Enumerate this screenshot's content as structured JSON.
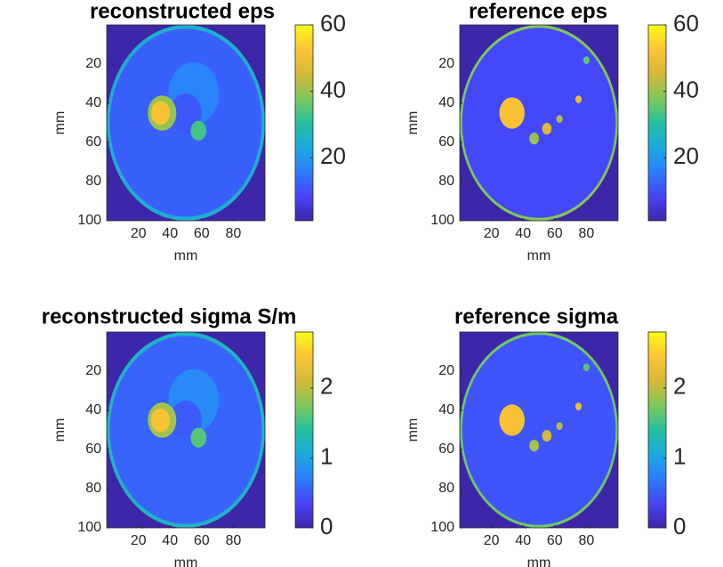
{
  "chart_data": [
    {
      "type": "heatmap",
      "title": "reconstructed eps",
      "xlabel": "mm",
      "ylabel": "mm",
      "xlim": [
        0,
        100
      ],
      "ylim": [
        0,
        100
      ],
      "xticks": [
        20,
        40,
        60,
        80
      ],
      "yticks": [
        20,
        40,
        60,
        80,
        100
      ],
      "clim": [
        1,
        60
      ],
      "cticks": [
        20,
        40,
        60
      ],
      "colormap": [
        "#3e26a8",
        "#4743f8",
        "#2c7dfe",
        "#1ca9df",
        "#25c09f",
        "#7dc85b",
        "#d6b938",
        "#fcc335",
        "#f9fb15"
      ],
      "regions": [
        {
          "x": 50,
          "y": 50,
          "r": 50,
          "value": 25
        },
        {
          "x": 50,
          "y": 50,
          "r": 48,
          "value": 12
        },
        {
          "x": 55,
          "y": 35,
          "r": 16,
          "value": 17
        },
        {
          "x": 50,
          "y": 45,
          "r": 10,
          "value": 11
        },
        {
          "x": 35,
          "y": 45,
          "r": 9,
          "value": 40
        },
        {
          "x": 34,
          "y": 45,
          "r": 6,
          "value": 52
        },
        {
          "x": 58,
          "y": 54,
          "r": 5,
          "value": 33
        }
      ]
    },
    {
      "type": "heatmap",
      "title": "reference eps",
      "xlabel": "mm",
      "ylabel": "mm",
      "xlim": [
        0,
        100
      ],
      "ylim": [
        0,
        100
      ],
      "xticks": [
        20,
        40,
        60,
        80
      ],
      "yticks": [
        20,
        40,
        60,
        80,
        100
      ],
      "clim": [
        1,
        60
      ],
      "cticks": [
        20,
        40,
        60
      ],
      "colormap": [
        "#3e26a8",
        "#4743f8",
        "#2c7dfe",
        "#1ca9df",
        "#25c09f",
        "#7dc85b",
        "#d6b938",
        "#fcc335",
        "#f9fb15"
      ],
      "regions": [
        {
          "x": 50,
          "y": 50,
          "r": 50,
          "value": 38
        },
        {
          "x": 50,
          "y": 50,
          "r": 48.5,
          "value": 9
        },
        {
          "x": 33,
          "y": 45,
          "r": 8,
          "value": 52
        },
        {
          "x": 55,
          "y": 53,
          "r": 3,
          "value": 46
        },
        {
          "x": 47,
          "y": 58,
          "r": 3,
          "value": 40
        },
        {
          "x": 75,
          "y": 38,
          "r": 2,
          "value": 50
        },
        {
          "x": 63,
          "y": 48,
          "r": 2,
          "value": 42
        },
        {
          "x": 80,
          "y": 18,
          "r": 2,
          "value": 35
        }
      ]
    },
    {
      "type": "heatmap",
      "title": "reconstructed sigma S/m",
      "xlabel": "mm",
      "ylabel": "mm",
      "xlim": [
        0,
        100
      ],
      "ylim": [
        0,
        100
      ],
      "xticks": [
        20,
        40,
        60,
        80
      ],
      "yticks": [
        20,
        40,
        60,
        80,
        100
      ],
      "clim": [
        0,
        2.8
      ],
      "cticks": [
        0,
        1,
        2
      ],
      "colormap": [
        "#3e26a8",
        "#4743f8",
        "#2c7dfe",
        "#1ca9df",
        "#25c09f",
        "#7dc85b",
        "#d6b938",
        "#fcc335",
        "#f9fb15"
      ],
      "regions": [
        {
          "x": 50,
          "y": 50,
          "r": 50,
          "value": 1.2
        },
        {
          "x": 50,
          "y": 50,
          "r": 48,
          "value": 0.55
        },
        {
          "x": 55,
          "y": 35,
          "r": 16,
          "value": 0.8
        },
        {
          "x": 50,
          "y": 45,
          "r": 10,
          "value": 0.5
        },
        {
          "x": 35,
          "y": 45,
          "r": 9,
          "value": 1.9
        },
        {
          "x": 34,
          "y": 45,
          "r": 6,
          "value": 2.4
        },
        {
          "x": 58,
          "y": 54,
          "r": 5,
          "value": 1.6
        }
      ]
    },
    {
      "type": "heatmap",
      "title": "reference sigma",
      "xlabel": "mm",
      "ylabel": "mm",
      "xlim": [
        0,
        100
      ],
      "ylim": [
        0,
        100
      ],
      "xticks": [
        20,
        40,
        60,
        80
      ],
      "yticks": [
        20,
        40,
        60,
        80,
        100
      ],
      "clim": [
        0,
        2.8
      ],
      "cticks": [
        0,
        1,
        2
      ],
      "colormap": [
        "#3e26a8",
        "#4743f8",
        "#2c7dfe",
        "#1ca9df",
        "#25c09f",
        "#7dc85b",
        "#d6b938",
        "#fcc335",
        "#f9fb15"
      ],
      "regions": [
        {
          "x": 50,
          "y": 50,
          "r": 50,
          "value": 1.7
        },
        {
          "x": 50,
          "y": 50,
          "r": 48.5,
          "value": 0.45
        },
        {
          "x": 33,
          "y": 45,
          "r": 8,
          "value": 2.4
        },
        {
          "x": 55,
          "y": 53,
          "r": 3,
          "value": 2.1
        },
        {
          "x": 47,
          "y": 58,
          "r": 3,
          "value": 1.9
        },
        {
          "x": 75,
          "y": 38,
          "r": 2,
          "value": 2.3
        },
        {
          "x": 63,
          "y": 48,
          "r": 2,
          "value": 2.0
        },
        {
          "x": 80,
          "y": 18,
          "r": 2,
          "value": 1.6
        }
      ]
    }
  ]
}
